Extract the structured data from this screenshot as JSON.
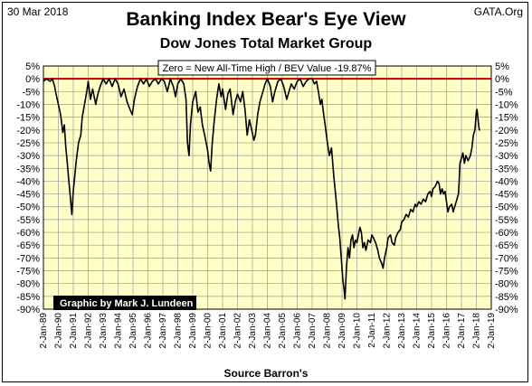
{
  "header": {
    "date": "30 Mar 2018",
    "site": "GATA.Org",
    "title": "Banking Index Bear's Eye View",
    "subtitle": "Dow Jones Total Market Group",
    "source": "Source Barron's"
  },
  "colors": {
    "plot_bg": "#ffffc8",
    "grid": "#9a9a9a",
    "series": "#000000",
    "zero_line": "#c00000",
    "credit_bg": "#000000",
    "credit_text": "#ffffff"
  },
  "chart_data": {
    "type": "line",
    "title": "Banking Index Bear's Eye View",
    "subtitle": "Dow Jones Total Market Group",
    "xlabel": "Source Barron's",
    "ylabel": "",
    "annotation": "Zero = New All-Time High / BEV Value -19.87%",
    "credit": "Graphic by Mark J. Lundeen",
    "xlim": [
      1989.0,
      2019.0
    ],
    "ylim": [
      -90,
      5
    ],
    "y_tick_values": [
      5,
      0,
      -5,
      -10,
      -15,
      -20,
      -25,
      -30,
      -35,
      -40,
      -45,
      -50,
      -55,
      -60,
      -65,
      -70,
      -75,
      -80,
      -85,
      -90
    ],
    "y_tick_labels": [
      "5%",
      "0%",
      "-5%",
      "-10%",
      "-15%",
      "-20%",
      "-25%",
      "-30%",
      "-35%",
      "-40%",
      "-45%",
      "-50%",
      "-55%",
      "-60%",
      "-65%",
      "-70%",
      "-75%",
      "-80%",
      "-85%",
      "-90%"
    ],
    "x_tick_values": [
      1989,
      1990,
      1991,
      1992,
      1993,
      1994,
      1995,
      1996,
      1997,
      1998,
      1999,
      2000,
      2001,
      2002,
      2003,
      2004,
      2005,
      2006,
      2007,
      2008,
      2009,
      2010,
      2011,
      2012,
      2013,
      2014,
      2015,
      2016,
      2017,
      2018,
      2019
    ],
    "x_tick_labels": [
      "2-Jan-89",
      "2-Jan-90",
      "2-Jan-91",
      "2-Jan-92",
      "2-Jan-93",
      "2-Jan-94",
      "2-Jan-95",
      "2-Jan-96",
      "2-Jan-97",
      "2-Jan-98",
      "2-Jan-99",
      "2-Jan-00",
      "2-Jan-01",
      "2-Jan-02",
      "2-Jan-03",
      "2-Jan-04",
      "2-Jan-05",
      "2-Jan-06",
      "2-Jan-07",
      "2-Jan-08",
      "2-Jan-09",
      "2-Jan-10",
      "2-Jan-11",
      "2-Jan-12",
      "2-Jan-13",
      "2-Jan-14",
      "2-Jan-15",
      "2-Jan-16",
      "2-Jan-17",
      "2-Jan-18",
      "2-Jan-19"
    ],
    "reference_line": 0,
    "grid": true,
    "series": [
      {
        "points": [
          [
            1989.0,
            -1
          ],
          [
            1989.2,
            0
          ],
          [
            1989.45,
            -1
          ],
          [
            1989.6,
            0
          ],
          [
            1989.75,
            -3
          ],
          [
            1989.85,
            -6
          ],
          [
            1990.0,
            -10
          ],
          [
            1990.15,
            -14
          ],
          [
            1990.3,
            -21
          ],
          [
            1990.4,
            -18
          ],
          [
            1990.5,
            -27
          ],
          [
            1990.6,
            -33
          ],
          [
            1990.7,
            -40
          ],
          [
            1990.8,
            -46
          ],
          [
            1990.9,
            -53
          ],
          [
            1991.0,
            -44
          ],
          [
            1991.1,
            -38
          ],
          [
            1991.2,
            -32
          ],
          [
            1991.35,
            -25
          ],
          [
            1991.5,
            -22
          ],
          [
            1991.6,
            -15
          ],
          [
            1991.75,
            -10
          ],
          [
            1991.9,
            -5
          ],
          [
            1992.0,
            -1
          ],
          [
            1992.15,
            -8
          ],
          [
            1992.3,
            -4
          ],
          [
            1992.5,
            -10
          ],
          [
            1992.65,
            -6
          ],
          [
            1992.8,
            -3
          ],
          [
            1993.0,
            0
          ],
          [
            1993.2,
            -2
          ],
          [
            1993.4,
            0
          ],
          [
            1993.6,
            -3
          ],
          [
            1993.8,
            0
          ],
          [
            1994.0,
            -2
          ],
          [
            1994.2,
            -7
          ],
          [
            1994.4,
            -4
          ],
          [
            1994.6,
            -9
          ],
          [
            1994.8,
            -12
          ],
          [
            1994.95,
            -14
          ],
          [
            1995.1,
            -8
          ],
          [
            1995.3,
            -3
          ],
          [
            1995.5,
            0
          ],
          [
            1995.7,
            -2
          ],
          [
            1995.9,
            0
          ],
          [
            1996.1,
            -3
          ],
          [
            1996.3,
            -1
          ],
          [
            1996.5,
            0
          ],
          [
            1996.7,
            -2
          ],
          [
            1996.9,
            0
          ],
          [
            1997.1,
            -1
          ],
          [
            1997.3,
            -5
          ],
          [
            1997.5,
            0
          ],
          [
            1997.7,
            -3
          ],
          [
            1997.85,
            -7
          ],
          [
            1998.0,
            -2
          ],
          [
            1998.2,
            0
          ],
          [
            1998.4,
            -2
          ],
          [
            1998.55,
            -8
          ],
          [
            1998.65,
            -25
          ],
          [
            1998.75,
            -30
          ],
          [
            1998.85,
            -18
          ],
          [
            1999.0,
            -9
          ],
          [
            1999.2,
            -5
          ],
          [
            1999.35,
            -13
          ],
          [
            1999.5,
            -11
          ],
          [
            1999.65,
            -18
          ],
          [
            1999.8,
            -22
          ],
          [
            1999.9,
            -25
          ],
          [
            2000.0,
            -28
          ],
          [
            2000.1,
            -33
          ],
          [
            2000.2,
            -36
          ],
          [
            2000.3,
            -26
          ],
          [
            2000.45,
            -16
          ],
          [
            2000.6,
            -8
          ],
          [
            2000.75,
            -2
          ],
          [
            2000.9,
            -7
          ],
          [
            2001.0,
            -4
          ],
          [
            2001.2,
            -12
          ],
          [
            2001.35,
            -6
          ],
          [
            2001.5,
            -4
          ],
          [
            2001.7,
            -14
          ],
          [
            2001.85,
            -9
          ],
          [
            2002.0,
            -6
          ],
          [
            2002.2,
            -9
          ],
          [
            2002.35,
            -5
          ],
          [
            2002.5,
            -12
          ],
          [
            2002.65,
            -22
          ],
          [
            2002.8,
            -16
          ],
          [
            2002.95,
            -20
          ],
          [
            2003.1,
            -24
          ],
          [
            2003.2,
            -22
          ],
          [
            2003.35,
            -14
          ],
          [
            2003.5,
            -9
          ],
          [
            2003.7,
            -5
          ],
          [
            2003.85,
            -2
          ],
          [
            2004.0,
            0
          ],
          [
            2004.2,
            -3
          ],
          [
            2004.35,
            -9
          ],
          [
            2004.5,
            -5
          ],
          [
            2004.7,
            -1
          ],
          [
            2004.9,
            0
          ],
          [
            2005.1,
            -3
          ],
          [
            2005.3,
            -8
          ],
          [
            2005.45,
            -5
          ],
          [
            2005.6,
            -2
          ],
          [
            2005.8,
            -4
          ],
          [
            2006.0,
            -1
          ],
          [
            2006.2,
            0
          ],
          [
            2006.4,
            -3
          ],
          [
            2006.6,
            -1
          ],
          [
            2006.8,
            0
          ],
          [
            2007.0,
            0
          ],
          [
            2007.15,
            -2
          ],
          [
            2007.3,
            -1
          ],
          [
            2007.45,
            -6
          ],
          [
            2007.55,
            -10
          ],
          [
            2007.65,
            -8
          ],
          [
            2007.75,
            -13
          ],
          [
            2007.85,
            -17
          ],
          [
            2008.0,
            -24
          ],
          [
            2008.15,
            -30
          ],
          [
            2008.3,
            -27
          ],
          [
            2008.45,
            -38
          ],
          [
            2008.55,
            -44
          ],
          [
            2008.65,
            -50
          ],
          [
            2008.75,
            -57
          ],
          [
            2008.85,
            -62
          ],
          [
            2008.95,
            -70
          ],
          [
            2009.05,
            -78
          ],
          [
            2009.15,
            -83
          ],
          [
            2009.2,
            -86
          ],
          [
            2009.3,
            -74
          ],
          [
            2009.4,
            -66
          ],
          [
            2009.5,
            -70
          ],
          [
            2009.6,
            -63
          ],
          [
            2009.7,
            -61
          ],
          [
            2009.8,
            -66
          ],
          [
            2009.9,
            -63
          ],
          [
            2010.0,
            -64
          ],
          [
            2010.1,
            -61
          ],
          [
            2010.2,
            -58
          ],
          [
            2010.3,
            -60
          ],
          [
            2010.4,
            -66
          ],
          [
            2010.5,
            -64
          ],
          [
            2010.6,
            -67
          ],
          [
            2010.75,
            -63
          ],
          [
            2010.9,
            -64
          ],
          [
            2011.0,
            -61
          ],
          [
            2011.1,
            -62
          ],
          [
            2011.25,
            -64
          ],
          [
            2011.4,
            -67
          ],
          [
            2011.5,
            -70
          ],
          [
            2011.65,
            -72
          ],
          [
            2011.75,
            -74
          ],
          [
            2011.85,
            -70
          ],
          [
            2012.0,
            -66
          ],
          [
            2012.1,
            -62
          ],
          [
            2012.25,
            -61
          ],
          [
            2012.35,
            -64
          ],
          [
            2012.5,
            -65
          ],
          [
            2012.6,
            -62
          ],
          [
            2012.75,
            -60
          ],
          [
            2012.9,
            -59
          ],
          [
            2013.0,
            -56
          ],
          [
            2013.15,
            -55
          ],
          [
            2013.3,
            -53
          ],
          [
            2013.45,
            -54
          ],
          [
            2013.6,
            -51
          ],
          [
            2013.75,
            -52
          ],
          [
            2013.9,
            -49
          ],
          [
            2014.0,
            -50
          ],
          [
            2014.15,
            -48
          ],
          [
            2014.3,
            -49
          ],
          [
            2014.45,
            -47
          ],
          [
            2014.6,
            -48
          ],
          [
            2014.75,
            -45
          ],
          [
            2014.9,
            -44
          ],
          [
            2015.0,
            -46
          ],
          [
            2015.1,
            -43
          ],
          [
            2015.25,
            -42
          ],
          [
            2015.4,
            -40
          ],
          [
            2015.5,
            -41
          ],
          [
            2015.6,
            -45
          ],
          [
            2015.7,
            -43
          ],
          [
            2015.8,
            -45
          ],
          [
            2015.9,
            -44
          ],
          [
            2016.0,
            -48
          ],
          [
            2016.1,
            -52
          ],
          [
            2016.2,
            -50
          ],
          [
            2016.35,
            -49
          ],
          [
            2016.45,
            -52
          ],
          [
            2016.55,
            -50
          ],
          [
            2016.7,
            -47
          ],
          [
            2016.8,
            -45
          ],
          [
            2016.85,
            -40
          ],
          [
            2016.9,
            -33
          ],
          [
            2017.0,
            -31
          ],
          [
            2017.1,
            -29
          ],
          [
            2017.2,
            -33
          ],
          [
            2017.3,
            -30
          ],
          [
            2017.45,
            -32
          ],
          [
            2017.6,
            -30
          ],
          [
            2017.7,
            -27
          ],
          [
            2017.8,
            -22
          ],
          [
            2017.9,
            -20
          ],
          [
            2018.0,
            -13
          ],
          [
            2018.05,
            -12
          ],
          [
            2018.1,
            -15
          ],
          [
            2018.15,
            -18
          ],
          [
            2018.2,
            -20
          ],
          [
            2018.25,
            -19.87
          ]
        ]
      }
    ]
  }
}
